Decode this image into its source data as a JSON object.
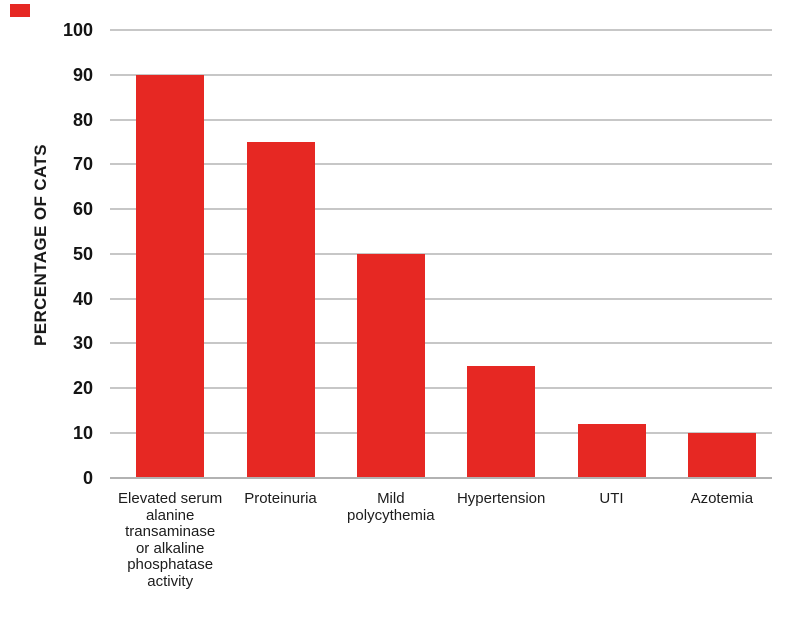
{
  "figure": {
    "marker_color": "#E62823"
  },
  "colors": {
    "bar": "#E62823",
    "gridline": "#C7C7C7",
    "axis_line": "#B2B2B2",
    "tick_text": "#141414",
    "category_text": "#1C1C1C"
  },
  "chart_data": {
    "type": "bar",
    "title": "",
    "xlabel": "",
    "ylabel": "PERCENTAGE OF CATS",
    "ylim": [
      0,
      100
    ],
    "yticks": [
      0,
      10,
      20,
      30,
      40,
      50,
      60,
      70,
      80,
      90,
      100
    ],
    "grid": "horizontal",
    "legend": "none",
    "bar_color": "#E62823",
    "categories": [
      "Elevated serum alanine transaminase or alkaline phosphatase activity",
      "Proteinuria",
      "Mild polycythemia",
      "Hypertension",
      "UTI",
      "Azotemia"
    ],
    "category_lines": [
      [
        "Elevated serum",
        "alanine",
        "transaminase",
        "or alkaline",
        "phosphatase",
        "activity"
      ],
      [
        "Proteinuria"
      ],
      [
        "Mild",
        "polycythemia"
      ],
      [
        "Hypertension"
      ],
      [
        "UTI"
      ],
      [
        "Azotemia"
      ]
    ],
    "values": [
      90,
      75,
      50,
      25,
      12,
      10
    ]
  }
}
